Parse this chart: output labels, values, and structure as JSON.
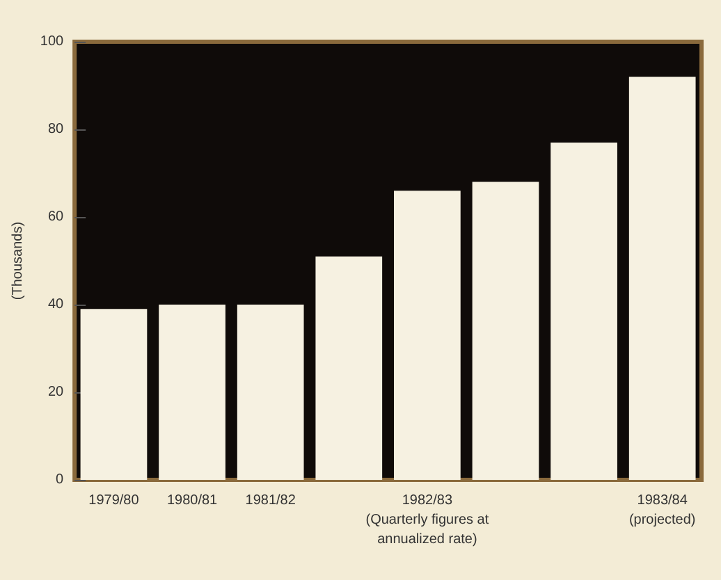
{
  "chart_data": {
    "type": "bar",
    "ylabel": "(Thousands)",
    "categories": [
      "1979/80",
      "1980/81",
      "1981/82",
      null,
      "1982/83\n(Quarterly figures at\nannualized rate)",
      null,
      null,
      "1983/84\n(projected)"
    ],
    "values": [
      39,
      40,
      40,
      51,
      66,
      68,
      77,
      92
    ],
    "color": "#f6f1e1",
    "ylim": [
      0,
      100
    ],
    "yticks": [
      0,
      20,
      40,
      60,
      80,
      100
    ],
    "grid": false
  }
}
